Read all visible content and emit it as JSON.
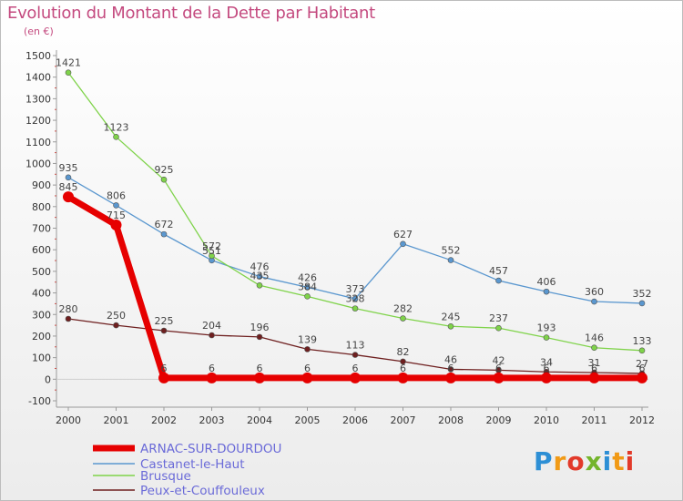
{
  "title": "Evolution du Montant de la Dette par Habitant",
  "subtitle": "(en €)",
  "logo": {
    "parts": [
      "P",
      "r",
      "o",
      "x",
      "i",
      "t",
      "i"
    ]
  },
  "chart_data": {
    "type": "line",
    "x": [
      2000,
      2001,
      2002,
      2003,
      2004,
      2005,
      2006,
      2007,
      2008,
      2009,
      2010,
      2011,
      2012
    ],
    "ylim": [
      -100,
      1500
    ],
    "yticks": [
      -100,
      0,
      100,
      200,
      300,
      400,
      500,
      600,
      700,
      800,
      900,
      1000,
      1100,
      1200,
      1300,
      1400,
      1500
    ],
    "grid": false,
    "legend": "bottom-left",
    "series": [
      {
        "name": "ARNAC-SUR-DOURDOU",
        "color": "#e60000",
        "values": [
          845,
          715,
          6,
          6,
          6,
          6,
          6,
          6,
          6,
          6,
          6,
          6,
          6
        ]
      },
      {
        "name": "Castanet-le-Haut",
        "color": "#5a97cf",
        "values": [
          935,
          806,
          672,
          551,
          476,
          426,
          373,
          627,
          552,
          457,
          406,
          360,
          352
        ]
      },
      {
        "name": "Brusque",
        "color": "#7fd34a",
        "values": [
          1421,
          1123,
          925,
          572,
          435,
          384,
          328,
          282,
          245,
          237,
          193,
          146,
          133
        ]
      },
      {
        "name": "Peux-et-Couffouleux",
        "color": "#6e1f1f",
        "values": [
          280,
          250,
          225,
          204,
          196,
          139,
          113,
          82,
          46,
          42,
          34,
          31,
          27
        ]
      }
    ]
  }
}
